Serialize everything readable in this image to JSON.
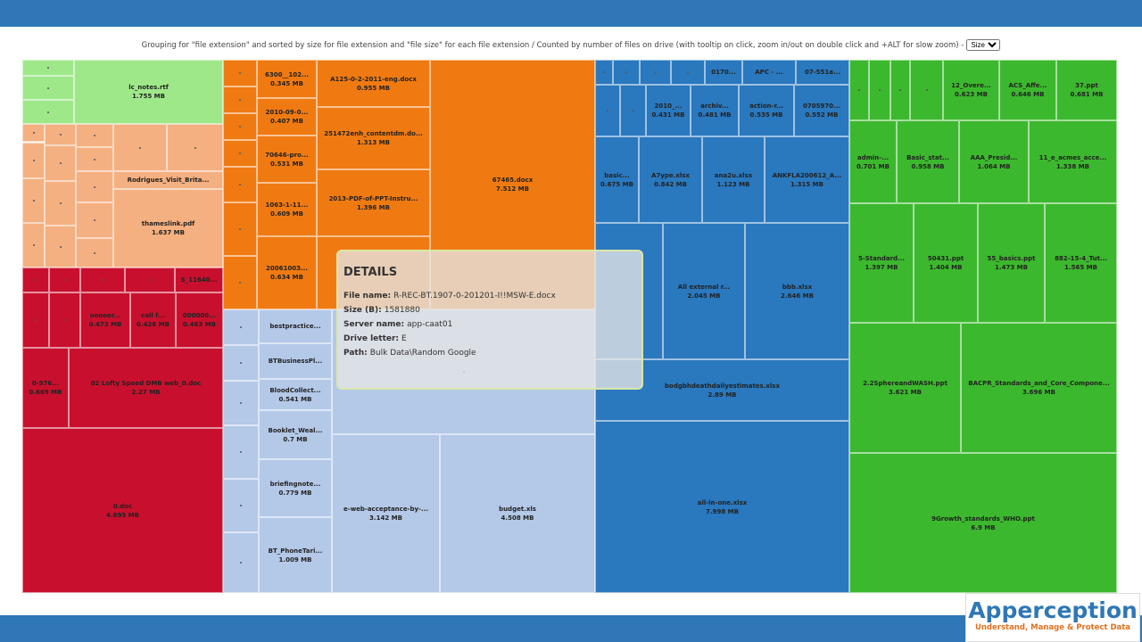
{
  "header": {
    "caption": "Grouping for \"file extension\" and sorted by size for file extension and \"file size\" for each file extension / Counted by number of files on drive (with tooltip on click, zoom in/out on double click and +ALT for slow zoom) -",
    "select": "Size"
  },
  "tiles": [
    {
      "label": "lc_notes.rtf",
      "size": "1.755 MB"
    },
    {
      "label": "Rodrigues_Visit_Brita..."
    },
    {
      "label": "thameslink.pdf",
      "size": "1.637 MB"
    },
    {
      "label": "S_11640..."
    },
    {
      "label": "ooooer...",
      "size": "0.473 MB"
    },
    {
      "label": "call f...",
      "size": "0.426 MB"
    },
    {
      "label": "000000...",
      "size": "0.463 MB"
    },
    {
      "label": "0-976...",
      "size": "0.669 MB"
    },
    {
      "label": "02 Lofty Speed DMB web_0.doc",
      "size": "2.27 MB"
    },
    {
      "label": "0.doc",
      "size": "4.695 MB"
    },
    {
      "label": "6300__102...",
      "size": "0.345 MB"
    },
    {
      "label": "2010-09-0...",
      "size": "0.407 MB"
    },
    {
      "label": "70646-pro...",
      "size": "0.531 MB"
    },
    {
      "label": "1063-1-11...",
      "size": "0.609 MB"
    },
    {
      "label": "20061003...",
      "size": "0.634 MB"
    },
    {
      "label": "A125-0-2-2011-eng.docx",
      "size": "0.955 MB"
    },
    {
      "label": "251472enh_contentdm.do...",
      "size": "1.313 MB"
    },
    {
      "label": "2013-PDF-of-PPT-Instru...",
      "size": "1.396 MB"
    },
    {
      "label": "67465.docx",
      "size": "7.512 MB"
    },
    {
      "label": "bestpractice..."
    },
    {
      "label": "BTBusinessPl..."
    },
    {
      "label": "BloodCollect...",
      "size": "0.541 MB"
    },
    {
      "label": "Booklet_Weal...",
      "size": "0.7 MB"
    },
    {
      "label": "briefingnote...",
      "size": "0.779 MB"
    },
    {
      "label": "BT_PhoneTari...",
      "size": "1.009 MB"
    },
    {
      "label": "e-web-acceptance-by-...",
      "size": "3.142 MB"
    },
    {
      "label": "budget.xls",
      "size": "4.508 MB"
    },
    {
      "label": "0170..."
    },
    {
      "label": "APC - ..."
    },
    {
      "label": "07-551a..."
    },
    {
      "label": "2010_...",
      "size": "0.431 MB"
    },
    {
      "label": "archiv...",
      "size": "0.481 MB"
    },
    {
      "label": "action-r...",
      "size": "0.535 MB"
    },
    {
      "label": "0705970...",
      "size": "0.552 MB"
    },
    {
      "label": "basic...",
      "size": "0.675 MB"
    },
    {
      "label": "A7ype.xlsx",
      "size": "0.842 MB"
    },
    {
      "label": "ana2u.xlsx",
      "size": "1.123 MB"
    },
    {
      "label": "ANKFLA200612_A...",
      "size": "1.315 MB"
    },
    {
      "label": "All external r...",
      "size": "2.045 MB"
    },
    {
      "label": "bbb.xlsx",
      "size": "2.646 MB"
    },
    {
      "label": "bodgbhdeathdailyestimates.xlsx",
      "size": "2.89 MB"
    },
    {
      "label": "all-in-one.xlsx",
      "size": "7.998 MB"
    },
    {
      "label": "12_Overe...",
      "size": "0.623 MB"
    },
    {
      "label": "ACS_Affe...",
      "size": "0.646 MB"
    },
    {
      "label": "37.ppt",
      "size": "0.681 MB"
    },
    {
      "label": "admin-...",
      "size": "0.701 MB"
    },
    {
      "label": "Basic_stat...",
      "size": "0.958 MB"
    },
    {
      "label": "AAA_Presid...",
      "size": "1.064 MB"
    },
    {
      "label": "11_e_acmes_acce...",
      "size": "1.338 MB"
    },
    {
      "label": "5-Standard...",
      "size": "1.397 MB"
    },
    {
      "label": "50431.ppt",
      "size": "1.404 MB"
    },
    {
      "label": "55_basics.ppt",
      "size": "1.473 MB"
    },
    {
      "label": "882-15-4_Tut...",
      "size": "1.565 MB"
    },
    {
      "label": "2.2SphereandWASH.ppt",
      "size": "3.621 MB"
    },
    {
      "label": "BACPR_Standards_and_Core_Compone...",
      "size": "3.696 MB"
    },
    {
      "label": "9Growth_standards_WHO.ppt",
      "size": "6.9 MB"
    }
  ],
  "tooltip": {
    "title": "DETAILS",
    "fields": [
      {
        "key": "File name:",
        "value": "R-REC-BT.1907-0-201201-I!!MSW-E.docx"
      },
      {
        "key": "Size (B):",
        "value": "1581880"
      },
      {
        "key": "Server name:",
        "value": "app-caat01"
      },
      {
        "key": "Drive letter:",
        "value": "E"
      },
      {
        "key": "Path:",
        "value": "Bulk Data\\Random Google"
      }
    ]
  },
  "logo": {
    "name": "Apperception",
    "tagline": "Understand, Manage & Protect Data"
  }
}
